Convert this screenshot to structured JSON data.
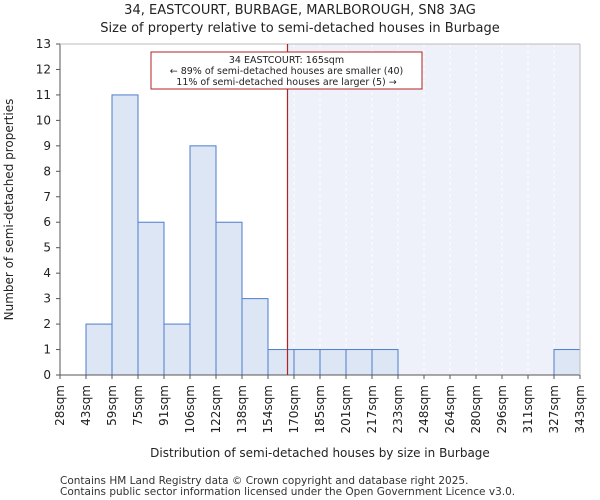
{
  "chart_data": {
    "type": "bar",
    "title": "34, EASTCOURT, BURBAGE, MARLBOROUGH, SN8 3AG",
    "subtitle": "Size of property relative to semi-detached houses in Burbage",
    "xlabel": "Distribution of semi-detached houses by size in Burbage",
    "ylabel": "Number of semi-detached properties",
    "ylim": [
      0,
      13
    ],
    "yticks": [
      "0",
      "1",
      "2",
      "3",
      "4",
      "5",
      "6",
      "7",
      "8",
      "9",
      "10",
      "11",
      "12",
      "13"
    ],
    "bin_edges": [
      "28sqm",
      "43sqm",
      "59sqm",
      "75sqm",
      "91sqm",
      "106sqm",
      "122sqm",
      "138sqm",
      "154sqm",
      "170sqm",
      "185sqm",
      "201sqm",
      "217sqm",
      "233sqm",
      "248sqm",
      "264sqm",
      "280sqm",
      "296sqm",
      "311sqm",
      "327sqm",
      "343sqm"
    ],
    "values": [
      0,
      2,
      11,
      6,
      2,
      9,
      6,
      3,
      1,
      1,
      1,
      1,
      1,
      0,
      0,
      0,
      0,
      0,
      0,
      1
    ],
    "marker": {
      "value_sqm": 165,
      "bin_position": 8.75,
      "line1": "34 EASTCOURT: 165sqm",
      "line2": "← 89% of semi-detached houses are smaller (40)",
      "line3": "11% of semi-detached houses are larger (5) →"
    },
    "colors": {
      "bar_fill": "#dce6f4",
      "bar_stroke": "#4d7ecb",
      "marker_line": "#b22222",
      "shade": "#eef1fa"
    }
  },
  "footer": {
    "line1": "Contains HM Land Registry data © Crown copyright and database right 2025.",
    "line2": "Contains public sector information licensed under the Open Government Licence v3.0."
  }
}
